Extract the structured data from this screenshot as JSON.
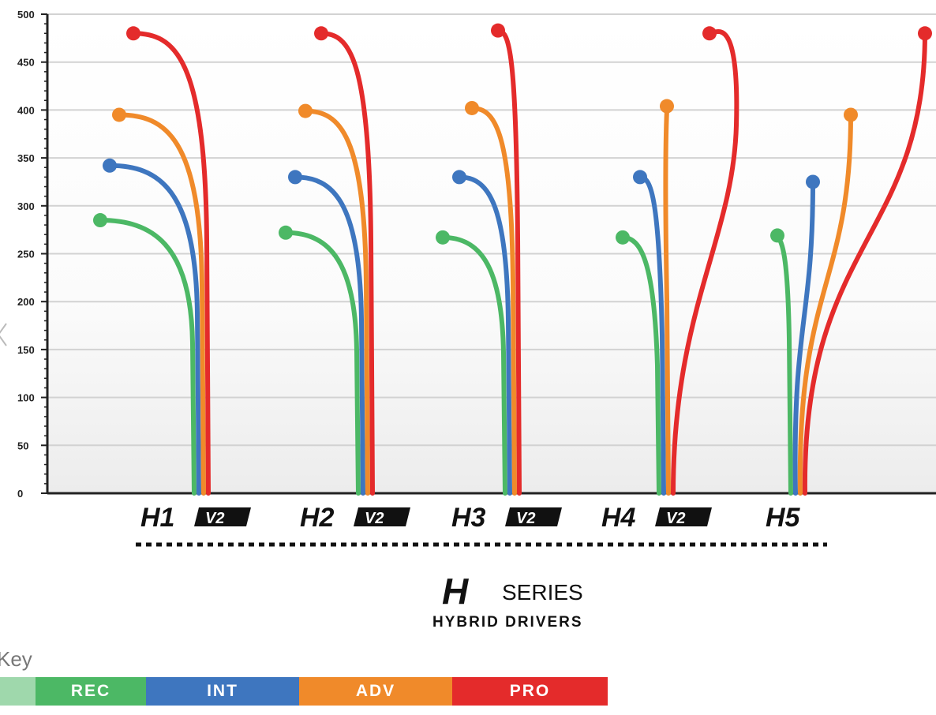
{
  "chart_data": {
    "type": "line",
    "title": "",
    "xlabel": "",
    "ylabel": "",
    "ylim": [
      0,
      500
    ],
    "yticks": [
      0,
      50,
      100,
      150,
      200,
      250,
      300,
      350,
      400,
      450,
      500
    ],
    "grid": true,
    "legend_position": "bottom-left",
    "colors": {
      "REC": "#4cb865",
      "INT": "#3e76bf",
      "ADV": "#f08a2a",
      "PRO": "#e42b2b"
    },
    "groups": [
      {
        "name": "H1",
        "badge": "V2",
        "peaks": {
          "REC": 285,
          "INT": 342,
          "ADV": 395,
          "PRO": 480
        }
      },
      {
        "name": "H2",
        "badge": "V2",
        "peaks": {
          "REC": 272,
          "INT": 330,
          "ADV": 399,
          "PRO": 480
        }
      },
      {
        "name": "H3",
        "badge": "V2",
        "peaks": {
          "REC": 267,
          "INT": 330,
          "ADV": 402,
          "PRO": 483
        }
      },
      {
        "name": "H4",
        "badge": "V2",
        "peaks": {
          "REC": 267,
          "INT": 330,
          "ADV": 404,
          "PRO": 480
        }
      },
      {
        "name": "H5",
        "badge": "",
        "peaks": {
          "REC": 269,
          "INT": 325,
          "ADV": 395,
          "PRO": 480
        }
      }
    ]
  },
  "branding": {
    "series_letter": "H",
    "series_word": "SERIES",
    "subtitle": "HYBRID DRIVERS"
  },
  "key": {
    "title": "Key",
    "items": [
      {
        "label": "REC",
        "color": "#4cb865"
      },
      {
        "label": "INT",
        "color": "#3e76bf"
      },
      {
        "label": "ADV",
        "color": "#f08a2a"
      },
      {
        "label": "PRO",
        "color": "#e42b2b"
      }
    ]
  }
}
